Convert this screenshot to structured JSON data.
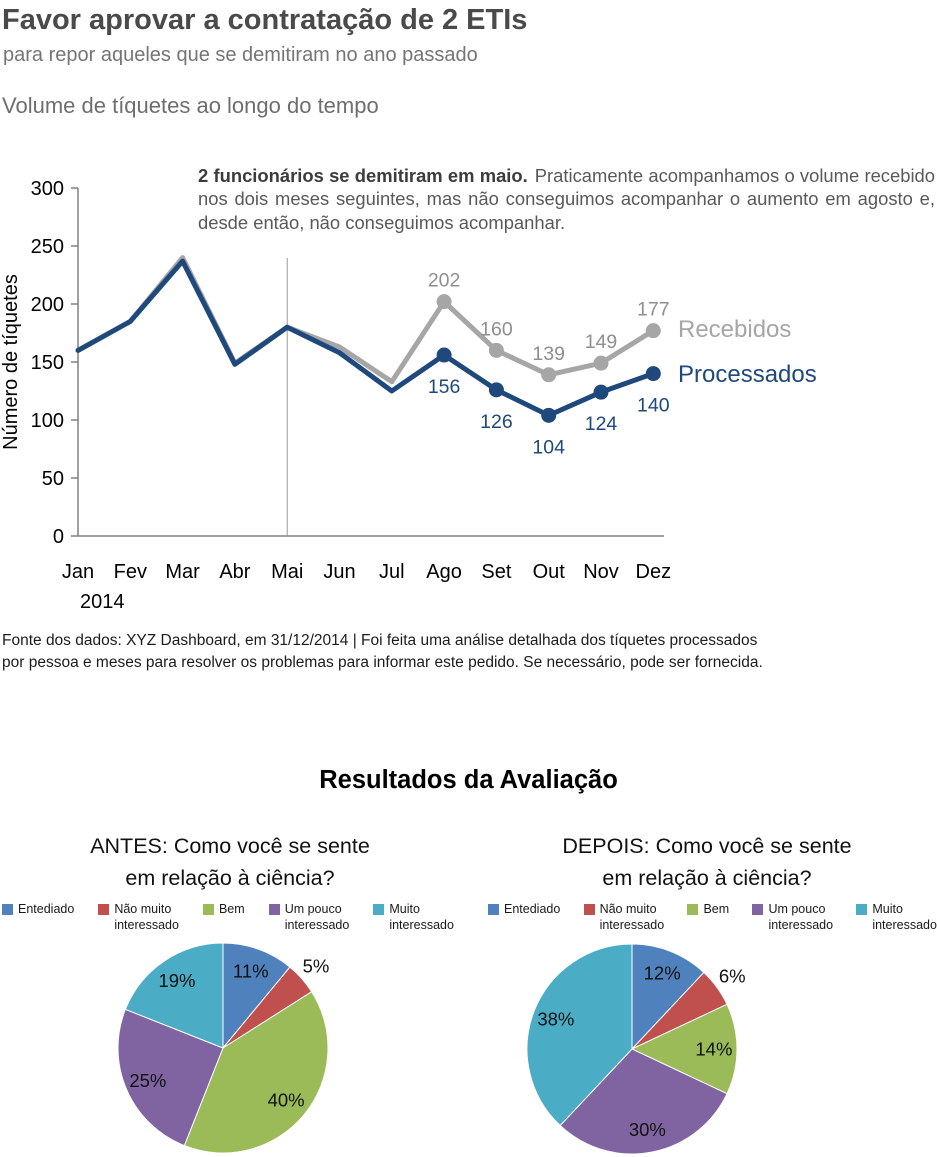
{
  "page": {
    "title": "Favor aprovar a contratação de 2 ETIs",
    "subtitle": "para repor aqueles que se demitiram no ano passado"
  },
  "pie_section": {
    "title": "Resultados da Avaliação"
  },
  "colors": {
    "navy": "#1F497D",
    "gray_line": "#A6A6A6",
    "axis": "#808080",
    "pie_blue": "#4F81BD",
    "pie_red": "#C0504D",
    "pie_green": "#9BBB59",
    "pie_purple": "#8064A2",
    "pie_teal": "#4BACC6"
  },
  "chart_data": [
    {
      "type": "line",
      "title": "Volume de tíquetes ao longo do tempo",
      "ylabel": "Número de tíquetes",
      "xlabel": "",
      "ylim": [
        0,
        300
      ],
      "yticks": [
        0,
        50,
        100,
        150,
        200,
        250,
        300
      ],
      "x": [
        "Jan",
        "Fev",
        "Mar",
        "Abr",
        "Mai",
        "Jun",
        "Jul",
        "Ago",
        "Set",
        "Out",
        "Nov",
        "Dez"
      ],
      "year_label": "2014",
      "grid": "off",
      "legend_position": "right-end-of-line",
      "reference_line_month": "Mai",
      "series": [
        {
          "name": "Recebidos",
          "color": "#A6A6A6",
          "label_color": "#8f8f8f",
          "values": [
            160,
            185,
            240,
            149,
            180,
            163,
            133,
            202,
            160,
            139,
            149,
            177
          ],
          "labels_from_index": 7
        },
        {
          "name": "Processados",
          "color": "#1F497D",
          "label_color": "#1F497D",
          "values": [
            160,
            185,
            237,
            148,
            180,
            158,
            125,
            156,
            126,
            104,
            124,
            140
          ],
          "labels_from_index": 7
        }
      ],
      "annotation": {
        "bold": "2 funcionários se demitiram em maio.",
        "text": "Praticamente acompanhamos o volume recebido nos dois meses seguintes, mas não conseguimos acompanhar o aumento em agosto e, desde então, não conseguimos acompanhar."
      },
      "source_note_line1": "Fonte dos dados: XYZ Dashboard, em 31/12/2014 | Foi feita uma análise detalhada dos tíquetes processados",
      "source_note_line2": "por pessoa e meses para resolver os problemas para informar este pedido. Se necessário, pode ser fornecida."
    },
    {
      "type": "pie",
      "title_line1": "ANTES: Como você se sente",
      "title_line2": "em relação à ciência?",
      "labels": [
        "Entediado",
        "Não muito\ninteressado",
        "Bem",
        "Um pouco\ninteressado",
        "Muito\ninteressado"
      ],
      "colors": [
        "#4F81BD",
        "#C0504D",
        "#9BBB59",
        "#8064A2",
        "#4BACC6"
      ],
      "values": [
        11,
        5,
        40,
        25,
        19
      ],
      "unit": "%",
      "start_angle": "top",
      "direction": "clockwise",
      "legend_position": "top"
    },
    {
      "type": "pie",
      "title_line1": "DEPOIS: Como você se sente",
      "title_line2": "em relação à ciência?",
      "labels": [
        "Entediado",
        "Não muito\ninteressado",
        "Bem",
        "Um pouco\ninteressado",
        "Muito\ninteressado"
      ],
      "colors": [
        "#4F81BD",
        "#C0504D",
        "#9BBB59",
        "#8064A2",
        "#4BACC6"
      ],
      "values": [
        12,
        6,
        14,
        30,
        38
      ],
      "unit": "%",
      "start_angle": "top",
      "direction": "clockwise",
      "legend_position": "top"
    }
  ]
}
